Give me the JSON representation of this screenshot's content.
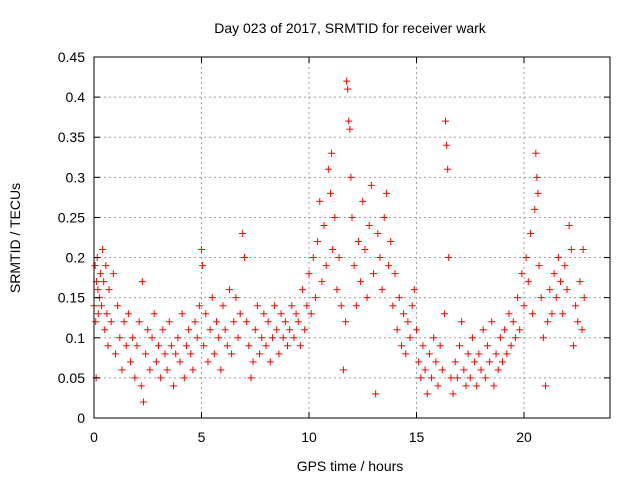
{
  "chart_data": {
    "type": "scatter",
    "title": "Day 023 of 2017, SRMTID for receiver wark",
    "xlabel": "GPS time / hours",
    "ylabel": "SRMTID / TECUs",
    "xlim": [
      0,
      24
    ],
    "ylim": [
      0,
      0.45
    ],
    "xticks": [
      0,
      5,
      10,
      15,
      20
    ],
    "xtick_labels": [
      "0",
      "5",
      "10",
      "15",
      "20"
    ],
    "yticks": [
      0,
      0.05,
      0.1,
      0.15,
      0.2,
      0.25,
      0.3,
      0.35,
      0.4,
      0.45
    ],
    "ytick_labels": [
      "0",
      "0.05",
      "0.1",
      "0.15",
      "0.2",
      "0.25",
      "0.3",
      "0.35",
      "0.4",
      "0.45"
    ],
    "grid": true,
    "marker": "plus",
    "color": "#ff0000",
    "series": [
      {
        "points": [
          [
            0.0,
            0.14
          ],
          [
            0.05,
            0.19
          ],
          [
            0.08,
            0.12
          ],
          [
            0.1,
            0.05
          ],
          [
            0.12,
            0.17
          ],
          [
            0.15,
            0.2
          ],
          [
            0.18,
            0.16
          ],
          [
            0.2,
            0.13
          ],
          [
            0.25,
            0.15
          ],
          [
            0.3,
            0.18
          ],
          [
            0.35,
            0.14
          ],
          [
            0.4,
            0.21
          ],
          [
            0.45,
            0.17
          ],
          [
            0.5,
            0.11
          ],
          [
            0.55,
            0.19
          ],
          [
            0.6,
            0.13
          ],
          [
            0.65,
            0.09
          ],
          [
            0.7,
            0.16
          ],
          [
            0.8,
            0.12
          ],
          [
            0.9,
            0.18
          ],
          [
            1.0,
            0.08
          ],
          [
            1.1,
            0.14
          ],
          [
            1.2,
            0.1
          ],
          [
            1.3,
            0.06
          ],
          [
            1.4,
            0.12
          ],
          [
            1.5,
            0.09
          ],
          [
            1.6,
            0.13
          ],
          [
            1.7,
            0.07
          ],
          [
            1.8,
            0.1
          ],
          [
            1.9,
            0.05
          ],
          [
            2.0,
            0.09
          ],
          [
            2.1,
            0.12
          ],
          [
            2.2,
            0.04
          ],
          [
            2.25,
            0.17
          ],
          [
            2.3,
            0.02
          ],
          [
            2.4,
            0.08
          ],
          [
            2.5,
            0.11
          ],
          [
            2.6,
            0.06
          ],
          [
            2.7,
            0.1
          ],
          [
            2.8,
            0.13
          ],
          [
            2.9,
            0.07
          ],
          [
            3.0,
            0.09
          ],
          [
            3.1,
            0.05
          ],
          [
            3.2,
            0.11
          ],
          [
            3.3,
            0.08
          ],
          [
            3.4,
            0.06
          ],
          [
            3.5,
            0.12
          ],
          [
            3.6,
            0.09
          ],
          [
            3.7,
            0.04
          ],
          [
            3.8,
            0.08
          ],
          [
            3.9,
            0.1
          ],
          [
            4.0,
            0.07
          ],
          [
            4.1,
            0.13
          ],
          [
            4.2,
            0.05
          ],
          [
            4.3,
            0.09
          ],
          [
            4.4,
            0.11
          ],
          [
            4.5,
            0.08
          ],
          [
            4.6,
            0.06
          ],
          [
            4.7,
            0.12
          ],
          [
            4.8,
            0.1
          ],
          [
            4.9,
            0.14
          ],
          [
            5.0,
            0.21
          ],
          [
            5.05,
            0.19
          ],
          [
            5.1,
            0.09
          ],
          [
            5.2,
            0.13
          ],
          [
            5.3,
            0.07
          ],
          [
            5.4,
            0.11
          ],
          [
            5.5,
            0.15
          ],
          [
            5.6,
            0.08
          ],
          [
            5.7,
            0.12
          ],
          [
            5.8,
            0.1
          ],
          [
            5.9,
            0.06
          ],
          [
            6.0,
            0.14
          ],
          [
            6.1,
            0.11
          ],
          [
            6.2,
            0.09
          ],
          [
            6.3,
            0.16
          ],
          [
            6.4,
            0.08
          ],
          [
            6.5,
            0.12
          ],
          [
            6.6,
            0.15
          ],
          [
            6.7,
            0.1
          ],
          [
            6.8,
            0.13
          ],
          [
            6.9,
            0.23
          ],
          [
            7.0,
            0.2
          ],
          [
            7.1,
            0.12
          ],
          [
            7.2,
            0.09
          ],
          [
            7.3,
            0.05
          ],
          [
            7.4,
            0.07
          ],
          [
            7.5,
            0.11
          ],
          [
            7.6,
            0.14
          ],
          [
            7.7,
            0.08
          ],
          [
            7.8,
            0.1
          ],
          [
            7.9,
            0.13
          ],
          [
            8.0,
            0.09
          ],
          [
            8.1,
            0.12
          ],
          [
            8.2,
            0.07
          ],
          [
            8.3,
            0.1
          ],
          [
            8.4,
            0.14
          ],
          [
            8.5,
            0.11
          ],
          [
            8.6,
            0.08
          ],
          [
            8.7,
            0.13
          ],
          [
            8.8,
            0.1
          ],
          [
            8.9,
            0.12
          ],
          [
            9.0,
            0.09
          ],
          [
            9.1,
            0.11
          ],
          [
            9.2,
            0.14
          ],
          [
            9.3,
            0.1
          ],
          [
            9.4,
            0.13
          ],
          [
            9.5,
            0.12
          ],
          [
            9.6,
            0.09
          ],
          [
            9.7,
            0.16
          ],
          [
            9.8,
            0.11
          ],
          [
            9.9,
            0.14
          ],
          [
            10.0,
            0.18
          ],
          [
            10.1,
            0.13
          ],
          [
            10.2,
            0.2
          ],
          [
            10.3,
            0.15
          ],
          [
            10.4,
            0.22
          ],
          [
            10.5,
            0.27
          ],
          [
            10.6,
            0.17
          ],
          [
            10.7,
            0.24
          ],
          [
            10.8,
            0.19
          ],
          [
            10.9,
            0.31
          ],
          [
            11.0,
            0.28
          ],
          [
            11.05,
            0.33
          ],
          [
            11.1,
            0.21
          ],
          [
            11.2,
            0.25
          ],
          [
            11.3,
            0.16
          ],
          [
            11.4,
            0.2
          ],
          [
            11.5,
            0.14
          ],
          [
            11.6,
            0.06
          ],
          [
            11.7,
            0.12
          ],
          [
            11.75,
            0.42
          ],
          [
            11.8,
            0.41
          ],
          [
            11.85,
            0.37
          ],
          [
            11.9,
            0.36
          ],
          [
            11.95,
            0.3
          ],
          [
            12.0,
            0.25
          ],
          [
            12.1,
            0.19
          ],
          [
            12.2,
            0.14
          ],
          [
            12.3,
            0.22
          ],
          [
            12.4,
            0.17
          ],
          [
            12.5,
            0.27
          ],
          [
            12.6,
            0.21
          ],
          [
            12.7,
            0.15
          ],
          [
            12.8,
            0.24
          ],
          [
            12.9,
            0.29
          ],
          [
            13.0,
            0.18
          ],
          [
            13.1,
            0.03
          ],
          [
            13.2,
            0.23
          ],
          [
            13.3,
            0.2
          ],
          [
            13.4,
            0.16
          ],
          [
            13.5,
            0.25
          ],
          [
            13.6,
            0.28
          ],
          [
            13.7,
            0.19
          ],
          [
            13.8,
            0.22
          ],
          [
            13.9,
            0.14
          ],
          [
            14.0,
            0.18
          ],
          [
            14.1,
            0.11
          ],
          [
            14.2,
            0.15
          ],
          [
            14.3,
            0.09
          ],
          [
            14.4,
            0.13
          ],
          [
            14.5,
            0.08
          ],
          [
            14.6,
            0.12
          ],
          [
            14.7,
            0.1
          ],
          [
            14.8,
            0.14
          ],
          [
            14.9,
            0.16
          ],
          [
            15.0,
            0.11
          ],
          [
            15.1,
            0.07
          ],
          [
            15.2,
            0.05
          ],
          [
            15.3,
            0.09
          ],
          [
            15.4,
            0.06
          ],
          [
            15.5,
            0.03
          ],
          [
            15.6,
            0.08
          ],
          [
            15.7,
            0.05
          ],
          [
            15.8,
            0.1
          ],
          [
            15.9,
            0.07
          ],
          [
            16.0,
            0.04
          ],
          [
            16.1,
            0.09
          ],
          [
            16.2,
            0.06
          ],
          [
            16.3,
            0.13
          ],
          [
            16.35,
            0.37
          ],
          [
            16.4,
            0.34
          ],
          [
            16.45,
            0.31
          ],
          [
            16.5,
            0.2
          ],
          [
            16.6,
            0.05
          ],
          [
            16.7,
            0.03
          ],
          [
            16.8,
            0.07
          ],
          [
            16.9,
            0.05
          ],
          [
            17.0,
            0.09
          ],
          [
            17.1,
            0.12
          ],
          [
            17.2,
            0.06
          ],
          [
            17.3,
            0.04
          ],
          [
            17.4,
            0.08
          ],
          [
            17.5,
            0.05
          ],
          [
            17.6,
            0.1
          ],
          [
            17.7,
            0.07
          ],
          [
            17.8,
            0.04
          ],
          [
            17.9,
            0.08
          ],
          [
            18.0,
            0.06
          ],
          [
            18.1,
            0.11
          ],
          [
            18.2,
            0.05
          ],
          [
            18.3,
            0.09
          ],
          [
            18.4,
            0.07
          ],
          [
            18.5,
            0.12
          ],
          [
            18.6,
            0.04
          ],
          [
            18.7,
            0.08
          ],
          [
            18.8,
            0.06
          ],
          [
            18.9,
            0.1
          ],
          [
            19.0,
            0.07
          ],
          [
            19.1,
            0.11
          ],
          [
            19.2,
            0.08
          ],
          [
            19.3,
            0.13
          ],
          [
            19.4,
            0.09
          ],
          [
            19.5,
            0.12
          ],
          [
            19.6,
            0.1
          ],
          [
            19.7,
            0.15
          ],
          [
            19.8,
            0.11
          ],
          [
            19.9,
            0.18
          ],
          [
            20.0,
            0.14
          ],
          [
            20.1,
            0.2
          ],
          [
            20.2,
            0.17
          ],
          [
            20.3,
            0.23
          ],
          [
            20.4,
            0.13
          ],
          [
            20.5,
            0.26
          ],
          [
            20.55,
            0.33
          ],
          [
            20.6,
            0.3
          ],
          [
            20.65,
            0.28
          ],
          [
            20.7,
            0.19
          ],
          [
            20.8,
            0.15
          ],
          [
            20.9,
            0.1
          ],
          [
            21.0,
            0.04
          ],
          [
            21.1,
            0.12
          ],
          [
            21.2,
            0.16
          ],
          [
            21.3,
            0.13
          ],
          [
            21.4,
            0.18
          ],
          [
            21.5,
            0.15
          ],
          [
            21.6,
            0.2
          ],
          [
            21.7,
            0.17
          ],
          [
            21.8,
            0.13
          ],
          [
            21.9,
            0.19
          ],
          [
            22.0,
            0.16
          ],
          [
            22.1,
            0.24
          ],
          [
            22.2,
            0.21
          ],
          [
            22.3,
            0.09
          ],
          [
            22.4,
            0.14
          ],
          [
            22.5,
            0.12
          ],
          [
            22.6,
            0.17
          ],
          [
            22.7,
            0.11
          ],
          [
            22.75,
            0.21
          ],
          [
            22.8,
            0.15
          ]
        ]
      }
    ]
  }
}
